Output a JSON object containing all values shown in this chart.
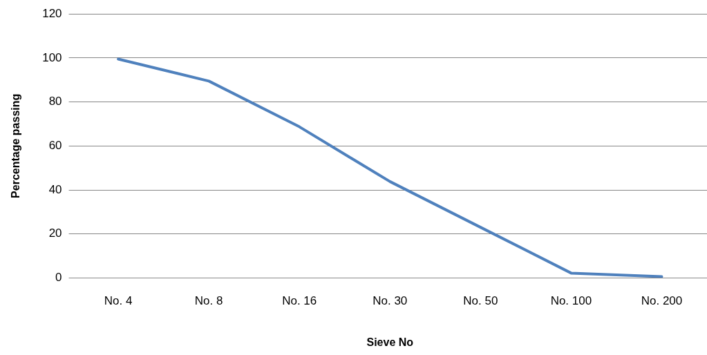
{
  "chart_data": {
    "type": "line",
    "xlabel": "Sieve No",
    "ylabel": "Percentage passing",
    "categories": [
      "No. 4",
      "No. 8",
      "No. 16",
      "No. 30",
      "No. 50",
      "No. 100",
      "No. 200"
    ],
    "series": [
      {
        "color": "#4f81bd",
        "values": [
          99.5,
          89.5,
          68.7,
          43.8,
          23,
          2.2,
          0.6
        ]
      }
    ],
    "ylim": [
      0,
      120
    ],
    "yticks": [
      0,
      20,
      40,
      60,
      80,
      100,
      120
    ],
    "grid": "y",
    "legend": false,
    "marker": "none",
    "line_style": "solid"
  }
}
